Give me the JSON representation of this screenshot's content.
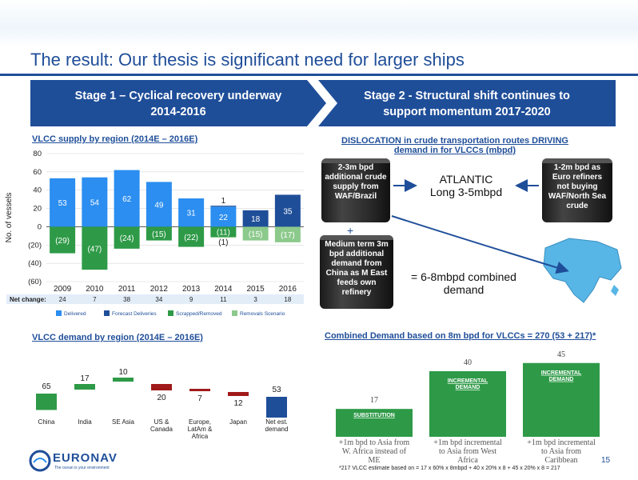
{
  "title": "The result: Our thesis is significant need for larger ships",
  "stage1": {
    "line1": "Stage 1 – Cyclical recovery underway",
    "line2": "2014-2016"
  },
  "stage2": {
    "line1": "Stage 2 - Structural shift continues to",
    "line2": "support momentum 2017-2020"
  },
  "supply": {
    "title": "VLCC supply by region (2014E – 2016E)",
    "ylabel": "No. of vessels",
    "yticks": [
      "80",
      "60",
      "40",
      "20",
      "0",
      "(20)",
      "(40)",
      "(60)"
    ],
    "years": [
      "2009",
      "2010",
      "2011",
      "2012",
      "2013",
      "2014",
      "2015",
      "2016"
    ],
    "net_label": "Net change:",
    "net_values": [
      "24",
      "7",
      "38",
      "34",
      "9",
      "11",
      "3",
      "18"
    ],
    "legend": [
      "Delivered",
      "Forecast Deliveries",
      "Scrapped/Removed",
      "Removals Scenario"
    ]
  },
  "demand_region": {
    "title": "VLCC demand by region (2014E – 2016E)",
    "categories": [
      "China",
      "India",
      "SE Asia",
      "US & Canada",
      "Europe, LatAm & Africa",
      "Japan",
      "Net est. demand"
    ],
    "labels": [
      "65",
      "17",
      "10",
      "20",
      "7",
      "12",
      "53"
    ]
  },
  "dislocation": {
    "title_line1": "DISLOCATION in crude transportation routes DRIVING",
    "title_line2": "demand in for VLCCs (mbpd)",
    "drum1": "2-3m bpd additional crude supply from WAF/Brazil",
    "drum2": "1-2m bpd as Euro refiners not buying WAF/North Sea crude",
    "drum3": "Medium term 3m bpd additional demand from China as M East feeds own refinery",
    "atlantic1": "ATLANTIC",
    "atlantic2": "Long 3-5mbpd",
    "plus": "+",
    "combined1": "= 6-8mbpd combined",
    "combined2": "demand"
  },
  "combined": {
    "title": "Combined Demand based on 8m bpd for VLCCs = 270 (53 + 217)*",
    "labels": [
      "17",
      "40",
      "45"
    ],
    "tags": [
      "SUBSTITUTION",
      "INCREMENTAL DEMAND",
      "INCREMENTAL DEMAND"
    ],
    "categories": [
      "+1m bpd to Asia from W. Africa instead of ME",
      "+1m bpd incremental to Asia from West Africa",
      "+1m bpd incremental to Asia from Caribbean"
    ],
    "footnote": "*217 VLCC estimate based on = 17 x 60% x 8mbpd + 40 x 20% x 8 + 45 x 20% x 8 = 217"
  },
  "logo": {
    "name": "EURONAV",
    "tagline": "The ocean is your environment"
  },
  "page_number": "15",
  "chart_data": [
    {
      "type": "bar",
      "title": "VLCC supply by region (2014E – 2016E)",
      "ylabel": "No. of vessels",
      "ylim": [
        -60,
        80
      ],
      "categories": [
        "2009",
        "2010",
        "2011",
        "2012",
        "2013",
        "2014",
        "2015",
        "2016"
      ],
      "series": [
        {
          "name": "Delivered",
          "values": [
            53,
            54,
            62,
            49,
            31,
            22,
            0,
            0
          ]
        },
        {
          "name": "Forecast Deliveries",
          "values": [
            0,
            0,
            0,
            0,
            0,
            1,
            18,
            35
          ]
        },
        {
          "name": "Scrapped/Removed",
          "values": [
            -29,
            -47,
            -24,
            -15,
            -22,
            -11,
            0,
            0
          ]
        },
        {
          "name": "Removals Scenario",
          "values": [
            0,
            0,
            0,
            0,
            0,
            -1,
            -15,
            -17
          ]
        }
      ],
      "value_labels": {
        "pos": [
          "53",
          "54",
          "62",
          "49",
          "31",
          "22",
          "18",
          "35"
        ],
        "neg": [
          "(29)",
          "(47)",
          "(24)",
          "(15)",
          "(22)",
          "(11)",
          "(15)",
          "(17)"
        ]
      },
      "grid": true,
      "legend": "bottom"
    },
    {
      "type": "bar",
      "title": "VLCC demand by region (2014E – 2016E)",
      "categories": [
        "China",
        "India",
        "SE Asia",
        "US & Canada",
        "Europe, LatAm & Africa",
        "Japan",
        "Net est. demand"
      ],
      "values": [
        65,
        17,
        10,
        -20,
        -7,
        -12,
        53
      ],
      "colors": [
        "#2e9a47",
        "#2e9a47",
        "#2e9a47",
        "#a01a1a",
        "#a01a1a",
        "#a01a1a",
        "#1f4e99"
      ]
    },
    {
      "type": "bar",
      "title": "Combined Demand based on 8m bpd for VLCCs = 270 (53 + 217)*",
      "categories": [
        "+1m bpd to Asia from W. Africa instead of ME",
        "+1m bpd incremental to Asia from West Africa",
        "+1m bpd incremental to Asia from Caribbean"
      ],
      "values": [
        17,
        40,
        45
      ],
      "colors": [
        "#2e9a47",
        "#2e9a47",
        "#2e9a47"
      ]
    }
  ],
  "colors": {
    "brand": "#1f4e99",
    "delivered": "#2b8ef0",
    "forecast": "#1f4e99",
    "scrapped": "#2e9a47",
    "removals": "#8cc98c",
    "negative": "#a01a1a"
  }
}
